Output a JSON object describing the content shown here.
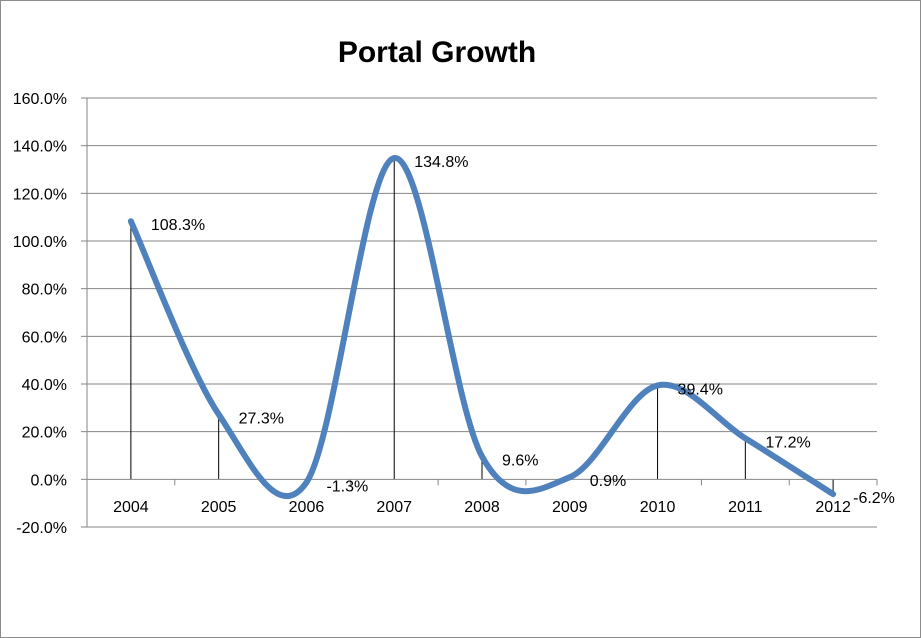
{
  "chart_data": {
    "type": "line",
    "title": "Portal Growth",
    "xlabel": "",
    "ylabel": "",
    "categories": [
      "2004",
      "2005",
      "2006",
      "2007",
      "2008",
      "2009",
      "2010",
      "2011",
      "2012"
    ],
    "series": [
      {
        "name": "Portal Growth",
        "values": [
          108.3,
          27.3,
          -1.3,
          134.8,
          9.6,
          0.9,
          39.4,
          17.2,
          -6.2
        ],
        "labels": [
          "108.3%",
          "27.3%",
          "-1.3%",
          "134.8%",
          "9.6%",
          "0.9%",
          "39.4%",
          "17.2%",
          "-6.2%"
        ]
      }
    ],
    "ylim": [
      -20,
      160
    ],
    "yticks": [
      -20,
      0,
      20,
      40,
      60,
      80,
      100,
      120,
      140,
      160
    ],
    "ytick_labels": [
      "-20.0%",
      "0.0%",
      "20.0%",
      "40.0%",
      "60.0%",
      "80.0%",
      "100.0%",
      "120.0%",
      "140.0%",
      "160.0%"
    ],
    "grid": true,
    "drop_lines": true,
    "smooth": true,
    "line_color": "#4F81BD",
    "grid_color": "#868686",
    "legend": "none"
  }
}
